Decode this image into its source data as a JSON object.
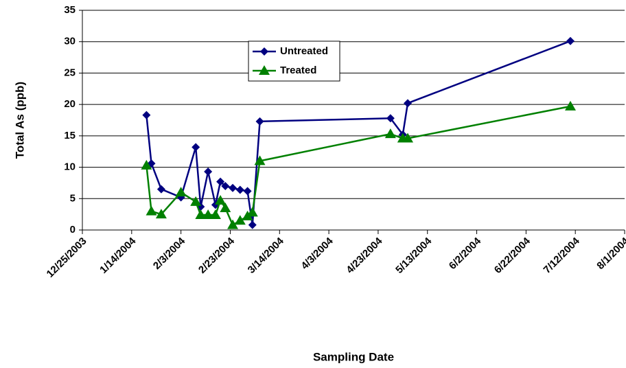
{
  "chart_data": {
    "type": "line",
    "x_label": "Sampling Date",
    "y_label": "Total As (ppb)",
    "x": [
      "1/20/2004",
      "1/22/2004",
      "1/26/2004",
      "2/3/2004",
      "2/9/2004",
      "2/11/2004",
      "2/14/2004",
      "2/17/2004",
      "2/19/2004",
      "2/21/2004",
      "2/24/2004",
      "2/27/2004",
      "3/1/2004",
      "3/3/2004",
      "3/6/2004",
      "4/28/2004",
      "5/3/2004",
      "5/5/2004",
      "7/10/2004"
    ],
    "series": [
      {
        "name": "Untreated",
        "color": "#000080",
        "marker": "diamond",
        "values": [
          18.3,
          10.6,
          6.5,
          5.2,
          13.2,
          3.7,
          9.3,
          4.0,
          7.7,
          7.0,
          6.7,
          6.4,
          6.2,
          0.8,
          17.3,
          17.8,
          15.2,
          20.2,
          30.1
        ]
      },
      {
        "name": "Treated",
        "color": "#008000",
        "marker": "triangle",
        "values": [
          10.3,
          3.0,
          2.5,
          6.0,
          4.5,
          2.4,
          2.4,
          2.4,
          4.7,
          3.5,
          0.8,
          1.5,
          2.2,
          2.8,
          11.0,
          15.3,
          14.6,
          14.6,
          19.7
        ]
      }
    ],
    "xlim": [
      "12/25/2003",
      "8/1/2004"
    ],
    "xticks": [
      "12/25/2003",
      "1/14/2004",
      "2/3/2004",
      "2/23/2004",
      "3/14/2004",
      "4/3/2004",
      "4/23/2004",
      "5/13/2004",
      "6/2/2004",
      "6/22/2004",
      "7/12/2004",
      "8/1/2004"
    ],
    "ylim": [
      0,
      35
    ],
    "yticks": [
      0,
      5,
      10,
      15,
      20,
      25,
      30,
      35
    ],
    "grid": true
  }
}
